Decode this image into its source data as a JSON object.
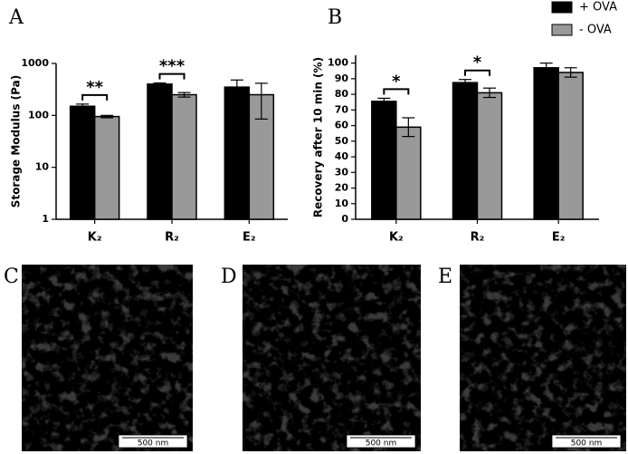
{
  "chart_data": [
    {
      "type": "bar",
      "label": "A",
      "y_label": "Storage Modulus (Pa)",
      "log": true,
      "categories": [
        "K₂",
        "R₂",
        "E₂"
      ],
      "series": [
        {
          "name": "+ OVA",
          "color": "#000000",
          "values": [
            150,
            400,
            350
          ],
          "errors": [
            15,
            20,
            130
          ]
        },
        {
          "name": "- OVA",
          "color": "#999999",
          "values": [
            95,
            250,
            250
          ],
          "errors": [
            5,
            25,
            165
          ]
        }
      ],
      "annotations": [
        "**",
        "***",
        null
      ],
      "ylim": [
        1,
        1000
      ],
      "yticks": [
        1,
        10,
        100,
        1000
      ]
    },
    {
      "type": "bar",
      "label": "B",
      "y_label": "Recovery after 10 min (%)",
      "categories": [
        "K₂",
        "R₂",
        "E₂"
      ],
      "series": [
        {
          "name": "+ OVA",
          "color": "#000000",
          "values": [
            75.5,
            87.5,
            97
          ],
          "errors": [
            2,
            2,
            3
          ]
        },
        {
          "name": "- OVA",
          "color": "#999999",
          "values": [
            59,
            81,
            94
          ],
          "errors": [
            6,
            3,
            3
          ]
        }
      ],
      "annotations": [
        "*",
        "*",
        null
      ],
      "ylim": [
        0,
        105
      ],
      "yticks": [
        0,
        10,
        20,
        30,
        40,
        50,
        60,
        70,
        80,
        90,
        100
      ]
    }
  ],
  "images": [
    {
      "label": "C",
      "scale_bar": "500 nm"
    },
    {
      "label": "D",
      "scale_bar": "500 nm"
    },
    {
      "label": "E",
      "scale_bar": "500 nm"
    }
  ]
}
